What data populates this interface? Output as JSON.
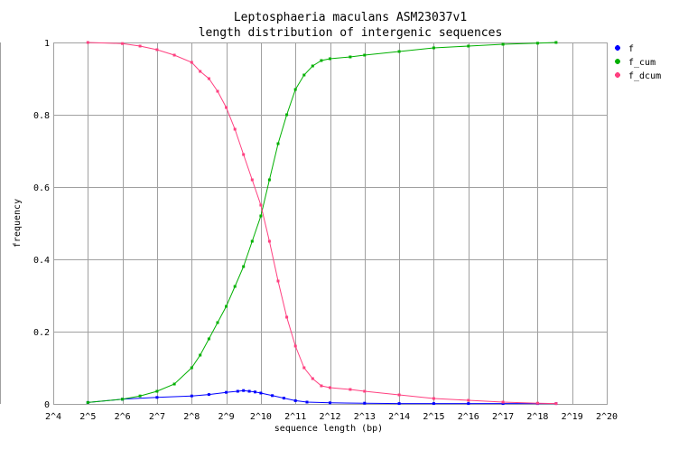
{
  "chart_data": {
    "type": "line",
    "title": [
      "Leptosphaeria maculans ASM23037v1",
      "length distribution of intergenic sequences"
    ],
    "xlabel": "sequence length (bp)",
    "ylabel": "frequency",
    "x_scale": "log2",
    "xlim": [
      16,
      1048576
    ],
    "ylim": [
      0,
      1
    ],
    "x_tick_labels": [
      "2^4",
      "2^5",
      "2^6",
      "2^7",
      "2^8",
      "2^9",
      "2^10",
      "2^11",
      "2^12",
      "2^13",
      "2^14",
      "2^15",
      "2^16",
      "2^17",
      "2^18",
      "2^19",
      "2^20"
    ],
    "y_tick_labels": [
      "0",
      "0.2",
      "0.4",
      "0.6",
      "0.8",
      "1"
    ],
    "grid": true,
    "legend_position": "right-top",
    "series": [
      {
        "name": "f",
        "color": "#0000ff",
        "x": [
          32,
          64,
          128,
          256,
          362,
          512,
          645,
          724,
          812,
          912,
          1024,
          1290,
          1625,
          2048,
          2580,
          4096,
          8192,
          16384,
          32768,
          65536,
          131072,
          262144,
          380000
        ],
        "y": [
          0.004,
          0.013,
          0.018,
          0.022,
          0.026,
          0.032,
          0.035,
          0.037,
          0.035,
          0.033,
          0.03,
          0.023,
          0.016,
          0.009,
          0.005,
          0.003,
          0.002,
          0.001,
          0.001,
          0.001,
          0.001,
          0.001,
          0.001
        ]
      },
      {
        "name": "f_cum",
        "color": "#00b000",
        "x": [
          32,
          64,
          91,
          128,
          181,
          256,
          304,
          362,
          431,
          512,
          609,
          724,
          861,
          1024,
          1217,
          1448,
          1722,
          2048,
          2435,
          2896,
          3444,
          4096,
          6144,
          8192,
          16384,
          32768,
          65536,
          131072,
          262144,
          380000
        ],
        "y": [
          0.004,
          0.013,
          0.022,
          0.035,
          0.055,
          0.1,
          0.135,
          0.18,
          0.225,
          0.27,
          0.325,
          0.38,
          0.45,
          0.52,
          0.62,
          0.72,
          0.8,
          0.87,
          0.91,
          0.935,
          0.95,
          0.955,
          0.96,
          0.965,
          0.975,
          0.985,
          0.99,
          0.995,
          0.998,
          1.0
        ]
      },
      {
        "name": "f_dcum",
        "color": "#ff4080",
        "x": [
          32,
          64,
          91,
          128,
          181,
          256,
          304,
          362,
          431,
          512,
          609,
          724,
          861,
          1024,
          1217,
          1448,
          1722,
          2048,
          2435,
          2896,
          3444,
          4096,
          6144,
          8192,
          16384,
          32768,
          65536,
          131072,
          262144,
          380000
        ],
        "y": [
          1.0,
          0.997,
          0.99,
          0.98,
          0.965,
          0.945,
          0.92,
          0.9,
          0.865,
          0.82,
          0.76,
          0.69,
          0.62,
          0.55,
          0.45,
          0.34,
          0.24,
          0.16,
          0.1,
          0.07,
          0.05,
          0.045,
          0.04,
          0.035,
          0.025,
          0.015,
          0.01,
          0.005,
          0.002,
          0.001
        ]
      }
    ]
  }
}
